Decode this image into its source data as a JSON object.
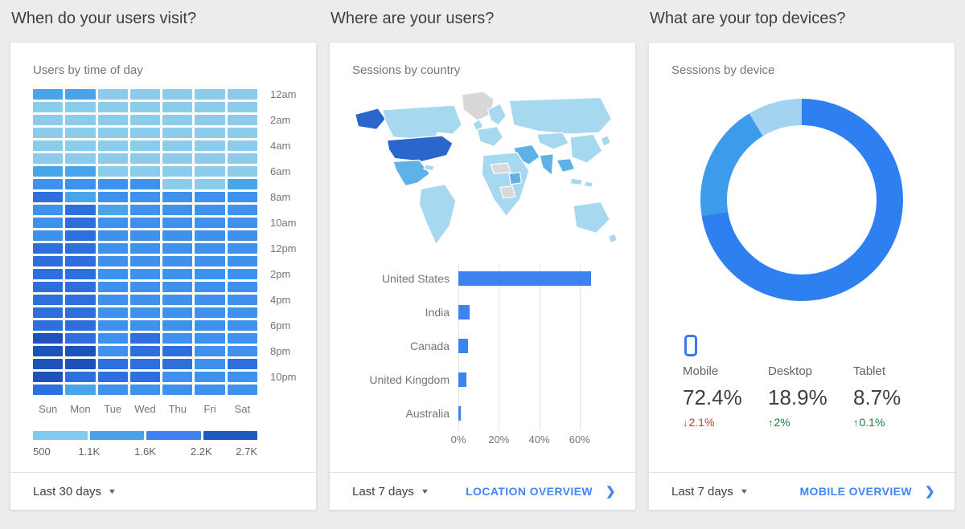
{
  "colors": {
    "page_bg": "#ECECEC",
    "card_bg": "#FFFFFF",
    "question_text": "#3C4043",
    "muted_text": "#757575",
    "label_text": "#616161",
    "footer_text": "#3C4043",
    "link_blue": "#4285F4",
    "divider": "#E0E0E0",
    "grid_line": "#E3E3E3",
    "delta_up": "#188038",
    "delta_down": "#D93025",
    "bar_blue": "#3D82EE",
    "map_light": "#A6D8F0",
    "map_medium": "#5FB2E8",
    "map_dark": "#2B66CC",
    "map_nodata": "#D8D8D8",
    "phone_icon_blue": "#3B78E8"
  },
  "icons": {
    "dropdown_caret": "▼",
    "chevron_right": "❯"
  },
  "cards": [
    {
      "question": "When do your users visit?",
      "title": "Users by time of day",
      "footer": {
        "range_label": "Last 30 days"
      }
    },
    {
      "question": "Where are your users?",
      "title": "Sessions by country",
      "footer": {
        "range_label": "Last 7 days",
        "link_label": "LOCATION OVERVIEW"
      }
    },
    {
      "question": "What are your top devices?",
      "title": "Sessions by device",
      "footer": {
        "range_label": "Last 7 days",
        "link_label": "MOBILE OVERVIEW"
      }
    }
  ],
  "chart_data": [
    {
      "type": "heatmap",
      "title": "Users by time of day",
      "x_categories": [
        "Sun",
        "Mon",
        "Tue",
        "Wed",
        "Thu",
        "Fri",
        "Sat"
      ],
      "hour_axis_labels": [
        "12am",
        "2am",
        "4am",
        "6am",
        "8am",
        "10am",
        "12pm",
        "2pm",
        "4pm",
        "6pm",
        "8pm",
        "10pm"
      ],
      "legend_stops": [
        "500",
        "1.1K",
        "1.6K",
        "2.2K",
        "2.7K"
      ],
      "legend_colors": [
        "#85C9EA",
        "#44A1EA",
        "#3B82F0",
        "#2058C2"
      ],
      "level_colors": [
        "#8DCBEA",
        "#49A5EA",
        "#3E92EE",
        "#2D6FDC",
        "#1D52B8"
      ],
      "levels": [
        [
          2,
          2,
          1,
          1,
          1,
          1,
          1
        ],
        [
          1,
          1,
          1,
          1,
          1,
          1,
          1
        ],
        [
          1,
          1,
          1,
          1,
          1,
          1,
          1
        ],
        [
          1,
          1,
          1,
          1,
          1,
          1,
          1
        ],
        [
          1,
          1,
          1,
          1,
          1,
          1,
          1
        ],
        [
          1,
          1,
          1,
          1,
          1,
          1,
          1
        ],
        [
          2,
          2,
          1,
          1,
          1,
          1,
          1
        ],
        [
          3,
          3,
          3,
          3,
          1,
          1,
          2
        ],
        [
          4,
          2,
          3,
          3,
          3,
          3,
          3
        ],
        [
          3,
          4,
          2,
          3,
          3,
          3,
          3
        ],
        [
          3,
          4,
          3,
          3,
          3,
          3,
          3
        ],
        [
          3,
          4,
          3,
          3,
          3,
          3,
          3
        ],
        [
          4,
          4,
          3,
          3,
          3,
          3,
          3
        ],
        [
          4,
          4,
          3,
          3,
          3,
          3,
          3
        ],
        [
          4,
          4,
          3,
          3,
          3,
          3,
          3
        ],
        [
          4,
          4,
          3,
          3,
          3,
          3,
          3
        ],
        [
          4,
          4,
          3,
          3,
          3,
          3,
          3
        ],
        [
          4,
          4,
          3,
          3,
          3,
          3,
          3
        ],
        [
          4,
          4,
          3,
          3,
          3,
          3,
          3
        ],
        [
          5,
          4,
          3,
          4,
          3,
          3,
          3
        ],
        [
          5,
          5,
          3,
          4,
          4,
          3,
          3
        ],
        [
          5,
          5,
          4,
          4,
          4,
          3,
          4
        ],
        [
          5,
          4,
          4,
          4,
          3,
          3,
          3
        ],
        [
          4,
          2,
          3,
          3,
          3,
          3,
          3
        ]
      ]
    },
    {
      "type": "heatmap",
      "subtype": "world-choropleth",
      "title": "Sessions by country",
      "regions": [
        {
          "name": "United States",
          "shade": "dark"
        },
        {
          "name": "Most countries",
          "shade": "light"
        },
        {
          "name": "Mexico, India, Middle East, parts of Africa",
          "shade": "medium"
        },
        {
          "name": "Greenland, parts of central Africa",
          "shade": "none"
        }
      ]
    },
    {
      "type": "bar",
      "orientation": "horizontal",
      "title": "Sessions by country",
      "categories": [
        "United States",
        "India",
        "Canada",
        "United Kingdom",
        "Australia"
      ],
      "values": [
        65.8,
        5.6,
        4.6,
        3.8,
        1.2
      ],
      "unit": "%",
      "xmax": 78,
      "tick_values": [
        0,
        20,
        40,
        60
      ],
      "tick_labels": [
        "0%",
        "20%",
        "40%",
        "60%"
      ],
      "bar_color": "#3D82EE"
    },
    {
      "type": "pie",
      "donut": true,
      "title": "Sessions by device",
      "slices": [
        {
          "name": "Mobile",
          "value": 72.4,
          "value_label": "72.4%",
          "delta_arrow": "↓",
          "delta_label": "2.1%",
          "delta_direction": "down",
          "color": "#2E80F1"
        },
        {
          "name": "Desktop",
          "value": 18.9,
          "value_label": "18.9%",
          "delta_arrow": "↑",
          "delta_label": "2%",
          "delta_direction": "up",
          "color": "#3D9BEC"
        },
        {
          "name": "Tablet",
          "value": 8.7,
          "value_label": "8.7%",
          "delta_arrow": "↑",
          "delta_label": "0.1%",
          "delta_direction": "up",
          "color": "#A2D3F0"
        }
      ]
    }
  ]
}
